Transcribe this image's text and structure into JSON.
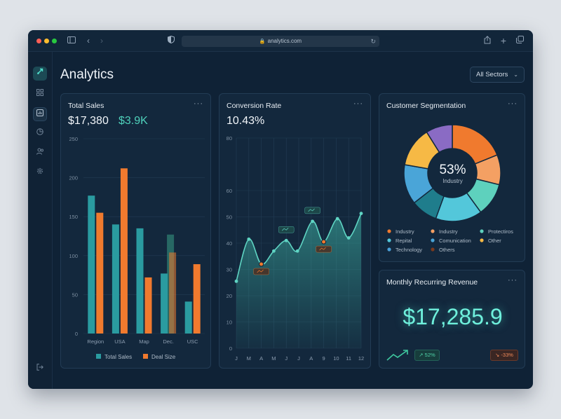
{
  "browser": {
    "url": "analytics.com",
    "traffic_colors": [
      "#ff5f57",
      "#febc2e",
      "#28c840"
    ]
  },
  "sidebar": {
    "items": [
      {
        "icon": "logo-icon"
      },
      {
        "icon": "grid-icon"
      },
      {
        "icon": "chart-icon"
      },
      {
        "icon": "pie-icon"
      },
      {
        "icon": "users-icon"
      },
      {
        "icon": "gear-icon"
      },
      {
        "icon": "logout-icon"
      }
    ]
  },
  "header": {
    "title": "Analytics",
    "filter_label": "All Sectors"
  },
  "total_sales": {
    "title": "Total Sales",
    "value": "$17,380",
    "delta": "$3.9K",
    "chart_data": {
      "type": "bar",
      "categories": [
        "Region",
        "USA",
        "Map",
        "Dec.",
        "USC"
      ],
      "ylim": [
        0,
        250
      ],
      "yticks": [
        0,
        50,
        100,
        150,
        200,
        250
      ],
      "series": [
        {
          "name": "Total Sales",
          "color": "#2a9ba0",
          "values": [
            177,
            140,
            135,
            77,
            41
          ]
        },
        {
          "name": "Deal Size",
          "color": "#f07a2e",
          "values": [
            155,
            212,
            72,
            104,
            89
          ]
        }
      ],
      "ghost_bars": [
        {
          "category": "Dec.",
          "value": 127,
          "color": "#2f7d72"
        }
      ]
    }
  },
  "conversion": {
    "title": "Conversion Rate",
    "value": "10.43%",
    "chart_data": {
      "type": "area",
      "x": [
        "J",
        "M",
        "A",
        "M",
        "J",
        "J",
        "A",
        "9",
        "10",
        "11",
        "12"
      ],
      "ylim": [
        0,
        80
      ],
      "yticks": [
        0,
        10,
        20,
        30,
        40,
        50,
        60,
        80
      ],
      "points": [
        {
          "x": 0,
          "y": 25.5
        },
        {
          "x": 1,
          "y": 41.5
        },
        {
          "x": 2,
          "y": 32
        },
        {
          "x": 3,
          "y": 37
        },
        {
          "x": 4,
          "y": 41
        },
        {
          "x": 4.9,
          "y": 37
        },
        {
          "x": 6.1,
          "y": 48.3
        },
        {
          "x": 7,
          "y": 40.5
        },
        {
          "x": 8.1,
          "y": 49.3
        },
        {
          "x": 9,
          "y": 42
        },
        {
          "x": 10,
          "y": 51.3
        }
      ],
      "highlight_indices": [
        2,
        7
      ],
      "line_color": "#5fd4c3",
      "highlight_color": "#f07a2e"
    }
  },
  "segmentation": {
    "title": "Customer Segmentation",
    "center_value": "53%",
    "center_label": "Industry",
    "chart_data": {
      "type": "pie",
      "slices": [
        {
          "name": "Industry",
          "value": 17,
          "color": "#f07a2e"
        },
        {
          "name": "Industry",
          "value": 9,
          "color": "#f4a063"
        },
        {
          "name": "Protectiros",
          "value": 10,
          "color": "#5ed1bd"
        },
        {
          "name": "Repital",
          "value": 14,
          "color": "#53c7da"
        },
        {
          "name": "Comunication",
          "value": 8,
          "color": "#1f7d8c"
        },
        {
          "name": "Other",
          "value": 12,
          "color": "#4aa5d8"
        },
        {
          "name": "Technology",
          "value": 12,
          "color": "#f6b945"
        },
        {
          "name": "Others",
          "value": 8,
          "color": "#8a6bc4"
        }
      ],
      "legend": [
        {
          "name": "Industry",
          "color": "#f07a2e"
        },
        {
          "name": "Industry",
          "color": "#f4a063"
        },
        {
          "name": "Protectiros",
          "color": "#5ed1bd"
        },
        {
          "name": "Repital",
          "color": "#53c7da"
        },
        {
          "name": "Comunication",
          "color": "#4aa5d8"
        },
        {
          "name": "Other",
          "color": "#f6b945"
        },
        {
          "name": "Technology",
          "color": "#4a9fd8"
        },
        {
          "name": "Others",
          "color": "#7a3a1e"
        }
      ]
    }
  },
  "mrr": {
    "title": "Monthly Recurring Revenue",
    "value": "$17,285.9",
    "up_badge": "↗ 52%",
    "down_badge": "↘ -33%"
  }
}
